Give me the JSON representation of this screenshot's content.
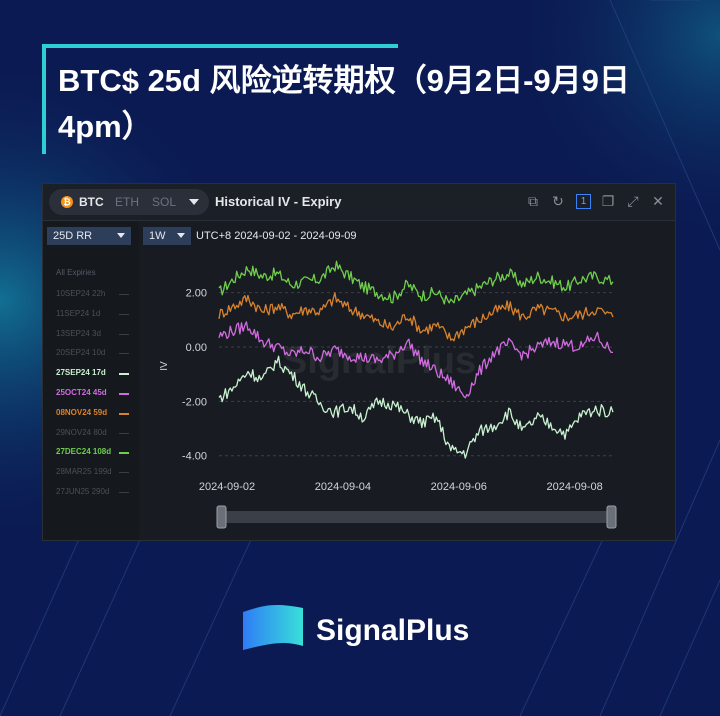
{
  "page_title": "BTC$ 25d 风险逆转期权（9月2日-9月9日 4pm）",
  "brand": "SignalPlus",
  "watermark": "SignalPlus",
  "colors": {
    "background": "#0b1a52",
    "accent": "#2ecfd2",
    "panel": "#181c22"
  },
  "panel": {
    "coin_tabs": [
      "BTC",
      "ETH",
      "SOL"
    ],
    "active_coin": "BTC",
    "title": "Historical IV - Expiry",
    "metric_select": "25D RR",
    "window_select": "1W",
    "range_text": "UTC+8 2024-09-02 - 2024-09-09",
    "window_icons": [
      "open-external-icon",
      "refresh-icon",
      "pin-icon",
      "duplicate-icon",
      "expand-icon",
      "close-icon"
    ],
    "pin_label": "1",
    "list_header": "All Expiries",
    "expiries": [
      {
        "label": "10SEP24 22h",
        "active": false,
        "color": "#4b5058"
      },
      {
        "label": "11SEP24 1d",
        "active": false,
        "color": "#4b5058"
      },
      {
        "label": "13SEP24 3d",
        "active": false,
        "color": "#4b5058"
      },
      {
        "label": "20SEP24 10d",
        "active": false,
        "color": "#4b5058"
      },
      {
        "label": "27SEP24 17d",
        "active": true,
        "color": "#c9f2d0"
      },
      {
        "label": "25OCT24 45d",
        "active": true,
        "color": "#d16be0"
      },
      {
        "label": "08NOV24 59d",
        "active": true,
        "color": "#d9822b"
      },
      {
        "label": "29NOV24 80d",
        "active": false,
        "color": "#4b5058"
      },
      {
        "label": "27DEC24 108d",
        "active": true,
        "color": "#6fcf4a"
      },
      {
        "label": "28MAR25 199d",
        "active": false,
        "color": "#4b5058"
      },
      {
        "label": "27JUN25 290d",
        "active": false,
        "color": "#4b5058"
      }
    ]
  },
  "chart_data": {
    "type": "line",
    "title": "",
    "xlabel": "",
    "ylabel": "IV",
    "ylim": [
      -4.6,
      3.2
    ],
    "y_ticks": [
      "2.00",
      "0.00",
      "-2.00",
      "-4.00"
    ],
    "y_tick_values": [
      2,
      0,
      -2,
      -4
    ],
    "x_ticks": [
      "2024-09-02",
      "2024-09-04",
      "2024-09-06",
      "2024-09-08"
    ],
    "x_range_days": [
      0,
      6.8
    ],
    "x_tick_values": [
      0,
      2,
      4,
      6
    ],
    "grid": "horizontal dashed",
    "legend": "sidebar list",
    "x_days": [
      0,
      0.25,
      0.5,
      0.75,
      1,
      1.25,
      1.5,
      1.75,
      2,
      2.25,
      2.5,
      2.75,
      3,
      3.25,
      3.5,
      3.75,
      4,
      4.25,
      4.5,
      4.75,
      5,
      5.25,
      5.5,
      5.75,
      6,
      6.25,
      6.5,
      6.8
    ],
    "series": [
      {
        "name": "27DEC24 108d",
        "color": "#6fcf4a",
        "values": [
          2.0,
          2.5,
          2.9,
          2.6,
          2.7,
          2.3,
          2.4,
          2.5,
          3.0,
          2.6,
          2.2,
          2.0,
          1.8,
          2.3,
          1.9,
          2.0,
          1.6,
          1.9,
          2.2,
          2.5,
          2.7,
          2.3,
          2.6,
          2.4,
          2.2,
          2.5,
          2.6,
          2.4
        ]
      },
      {
        "name": "08NOV24 59d",
        "color": "#d9822b",
        "values": [
          1.2,
          1.5,
          1.8,
          1.3,
          1.5,
          1.2,
          1.4,
          1.3,
          1.8,
          1.4,
          1.2,
          0.9,
          0.7,
          1.2,
          0.6,
          0.8,
          0.3,
          0.7,
          1.0,
          1.3,
          1.5,
          1.1,
          1.4,
          1.3,
          1.1,
          1.2,
          1.4,
          1.1
        ]
      },
      {
        "name": "25OCT24 45d",
        "color": "#d16be0",
        "values": [
          0.4,
          0.6,
          0.8,
          0.2,
          0.0,
          -0.3,
          -0.1,
          -0.4,
          -0.1,
          -0.3,
          -0.4,
          -0.5,
          -0.3,
          0.2,
          -0.5,
          -0.9,
          -1.3,
          -1.8,
          -0.9,
          -0.2,
          0.1,
          -0.3,
          0.0,
          0.2,
          0.1,
          0.0,
          0.4,
          -0.2
        ]
      },
      {
        "name": "27SEP24 17d",
        "color": "#c9f2d0",
        "values": [
          -1.9,
          -1.5,
          -0.9,
          -1.2,
          -0.5,
          -1.0,
          -1.6,
          -2.1,
          -2.4,
          -2.2,
          -2.6,
          -2.0,
          -2.1,
          -2.5,
          -2.8,
          -2.6,
          -3.8,
          -3.9,
          -3.1,
          -2.9,
          -2.4,
          -3.1,
          -2.6,
          -2.9,
          -3.2,
          -2.5,
          -2.3,
          -2.4
        ]
      }
    ]
  }
}
